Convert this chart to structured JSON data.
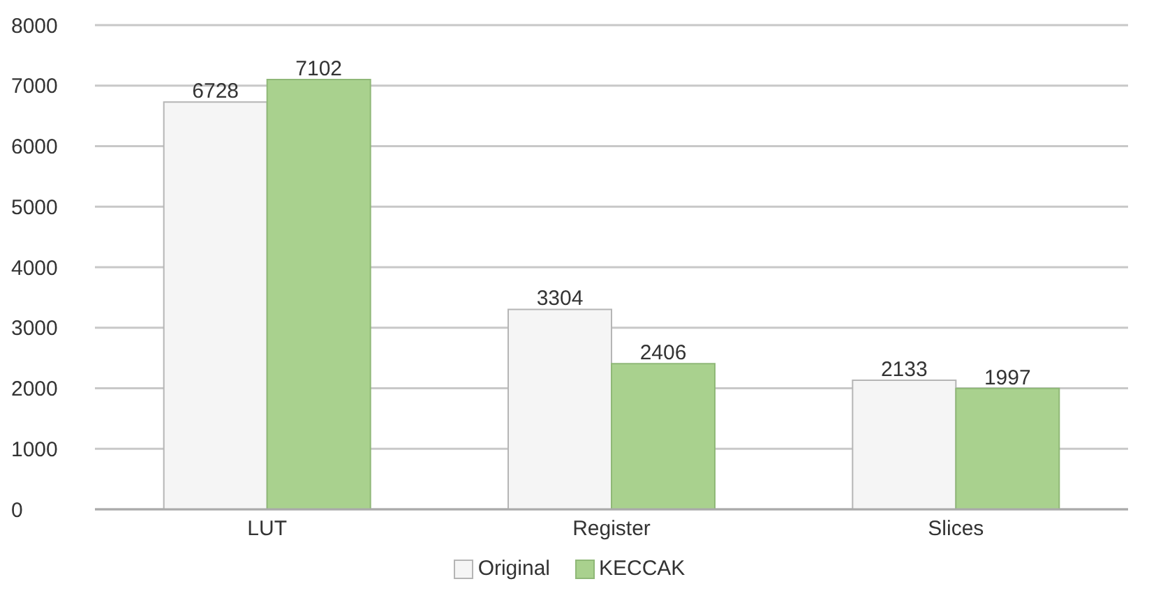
{
  "chart_data": {
    "type": "bar",
    "categories": [
      "LUT",
      "Register",
      "Slices"
    ],
    "series": [
      {
        "name": "Original",
        "color": "#f5f5f5",
        "values": [
          6728,
          3304,
          2133
        ]
      },
      {
        "name": "KECCAK",
        "color": "#a9d18e",
        "values": [
          7102,
          2406,
          1997
        ]
      }
    ],
    "ylim": [
      0,
      8000
    ],
    "yticks": [
      0,
      1000,
      2000,
      3000,
      4000,
      5000,
      6000,
      7000,
      8000
    ],
    "grid": "y",
    "legend": "bottom",
    "data_labels": true
  }
}
